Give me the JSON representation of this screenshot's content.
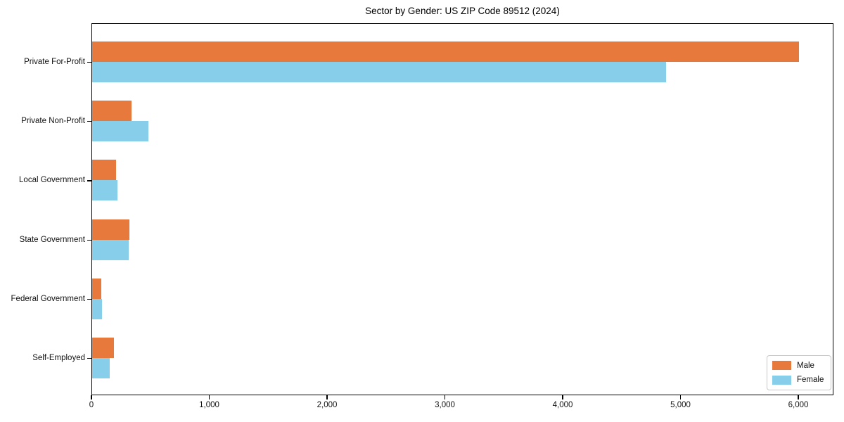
{
  "chart_data": {
    "type": "bar",
    "orientation": "horizontal",
    "title": "Sector by Gender: US ZIP Code 89512 (2024)",
    "categories": [
      "Private For-Profit",
      "Private Non-Profit",
      "Local Government",
      "State Government",
      "Federal Government",
      "Self-Employed"
    ],
    "series": [
      {
        "name": "Male",
        "color": "#e8793d",
        "values": [
          6000,
          335,
          205,
          315,
          80,
          185
        ]
      },
      {
        "name": "Female",
        "color": "#87ceeb",
        "values": [
          4870,
          475,
          215,
          310,
          85,
          150
        ]
      }
    ],
    "xlabel": "",
    "ylabel": "",
    "xlim": [
      0,
      6290
    ],
    "xticks": [
      0,
      1000,
      2000,
      3000,
      4000,
      5000,
      6000
    ],
    "xtick_labels": [
      "0",
      "1,000",
      "2,000",
      "3,000",
      "4,000",
      "5,000",
      "6,000"
    ],
    "legend_position": "lower right",
    "grid": false,
    "frame": true
  },
  "colors": {
    "axis": "#000000",
    "background": "#ffffff",
    "legend_border": "#c8c8c8"
  }
}
